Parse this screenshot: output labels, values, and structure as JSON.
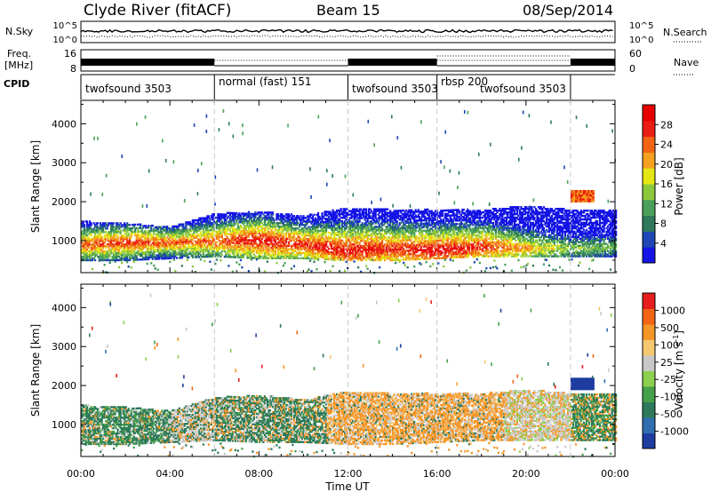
{
  "header": {
    "station": "Clyde River (fitACF)",
    "beam": "Beam 15",
    "date": "08/Sep/2014"
  },
  "top_panels": {
    "nsky_label": "N.Sky",
    "nsky_left_ticks": [
      "10^5",
      "10^0"
    ],
    "nsky_right_ticks": [
      "10^5",
      "10^0"
    ],
    "nsearch_label": "N.Search",
    "freq_label_line1": "Freq.",
    "freq_label_line2": "[MHz]",
    "freq_ticks": [
      "16",
      "8"
    ],
    "nave_ticks": [
      "60",
      "0"
    ],
    "nave_label": "Nave",
    "cpid_label": "CPID",
    "cpid_segments": [
      {
        "label": "twofsound 3503",
        "start_h": 0,
        "end_h": 6
      },
      {
        "label": "normal (fast) 151",
        "start_h": 6,
        "end_h": 12
      },
      {
        "label": "twofsound 3503",
        "start_h": 12,
        "end_h": 16
      },
      {
        "label": "rbsp 200",
        "start_h": 16,
        "end_h": 22
      },
      {
        "label": "twofsound 3503",
        "start_h": 16,
        "end_h": 22
      },
      {
        "label": "",
        "start_h": 22,
        "end_h": 24
      }
    ]
  },
  "power_panel": {
    "ylabel": "Slant Range [km]",
    "yticks": [
      "4000",
      "3000",
      "2000",
      "1000"
    ],
    "colorbar_label": "Power [dB]",
    "colorbar_ticks": [
      "28",
      "24",
      "20",
      "16",
      "12",
      "8",
      "4"
    ]
  },
  "velocity_panel": {
    "ylabel": "Slant Range [km]",
    "yticks": [
      "4000",
      "3000",
      "2000",
      "1000"
    ],
    "colorbar_label": "Velocity [m s",
    "colorbar_label_sup": "-1",
    "colorbar_label_end": "]",
    "colorbar_ticks": [
      "1000",
      "500",
      "100",
      "25",
      "-25",
      "-100",
      "-500",
      "-1000"
    ]
  },
  "xaxis": {
    "label": "Time UT",
    "ticks": [
      "00:00",
      "04:00",
      "08:00",
      "12:00",
      "16:00",
      "20:00",
      "00:00"
    ]
  },
  "colors": {
    "power_scale": [
      "#1414e6",
      "#1e46b4",
      "#2e7a5a",
      "#4aa05a",
      "#8cc83c",
      "#e6e614",
      "#f5a01e",
      "#f06414",
      "#eb1e14",
      "#e60000"
    ],
    "velocity_scale": [
      "#1e3ca0",
      "#2f6fb0",
      "#2e7a5a",
      "#46a04a",
      "#8cd050",
      "#c8c8c8",
      "#f5c870",
      "#f59628",
      "#f06414",
      "#e61e1e"
    ]
  },
  "chart_data": {
    "type": "heatmap",
    "title": "Clyde River (fitACF)",
    "subtitle": "Beam 15",
    "date": "08/Sep/2014",
    "xlabel": "Time UT",
    "x_unit": "hours UT",
    "xlim": [
      0,
      24
    ],
    "ylabel": "Slant Range [km]",
    "ylim": [
      180,
      4600
    ],
    "panels": [
      {
        "name": "Power",
        "colorbar_label": "Power [dB]",
        "clim": [
          0,
          30
        ],
        "scatter_band": [
          {
            "t": 0,
            "r_lo": 500,
            "r_hi": 1500,
            "core": 900,
            "val_core": 24
          },
          {
            "t": 2,
            "r_lo": 500,
            "r_hi": 1450,
            "core": 950,
            "val_core": 26
          },
          {
            "t": 4,
            "r_lo": 550,
            "r_hi": 1350,
            "core": 950,
            "val_core": 24
          },
          {
            "t": 6,
            "r_lo": 600,
            "r_hi": 1700,
            "core": 1000,
            "val_core": 24
          },
          {
            "t": 8,
            "r_lo": 550,
            "r_hi": 1750,
            "core": 1000,
            "val_core": 28
          },
          {
            "t": 10,
            "r_lo": 550,
            "r_hi": 1650,
            "core": 900,
            "val_core": 26
          },
          {
            "t": 12,
            "r_lo": 500,
            "r_hi": 1850,
            "core": 750,
            "val_core": 28
          },
          {
            "t": 14,
            "r_lo": 500,
            "r_hi": 1800,
            "core": 800,
            "val_core": 26
          },
          {
            "t": 16,
            "r_lo": 550,
            "r_hi": 1800,
            "core": 750,
            "val_core": 28
          },
          {
            "t": 18,
            "r_lo": 600,
            "r_hi": 1800,
            "core": 850,
            "val_core": 26
          },
          {
            "t": 20,
            "r_lo": 600,
            "r_hi": 1900,
            "core": 800,
            "val_core": 20
          },
          {
            "t": 22,
            "r_lo": 600,
            "r_hi": 1800,
            "core": 800,
            "val_core": 14
          },
          {
            "t": 24,
            "r_lo": 600,
            "r_hi": 1800,
            "core": 850,
            "val_core": 12
          }
        ]
      },
      {
        "name": "Velocity",
        "colorbar_label": "Velocity [m s-1]",
        "clim": [
          -1000,
          1000
        ],
        "scatter_band": [
          {
            "t": 0,
            "r_lo": 500,
            "r_hi": 1500,
            "dominant": "green"
          },
          {
            "t": 4,
            "r_lo": 550,
            "r_hi": 1400,
            "dominant": "gray/green"
          },
          {
            "t": 8,
            "r_lo": 550,
            "r_hi": 1750,
            "dominant": "green"
          },
          {
            "t": 12,
            "r_lo": 500,
            "r_hi": 1850,
            "dominant": "orange"
          },
          {
            "t": 16,
            "r_lo": 550,
            "r_hi": 1800,
            "dominant": "orange"
          },
          {
            "t": 20,
            "r_lo": 600,
            "r_hi": 1900,
            "dominant": "gray/orange"
          },
          {
            "t": 22,
            "r_lo": 1900,
            "r_hi": 2100,
            "dominant": "blue"
          },
          {
            "t": 24,
            "r_lo": 600,
            "r_hi": 1800,
            "dominant": "green"
          }
        ]
      }
    ]
  }
}
